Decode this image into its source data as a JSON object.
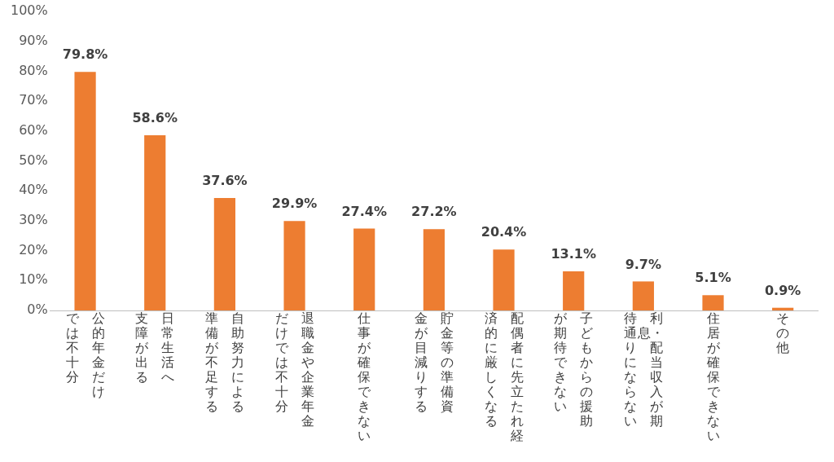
{
  "chart_data": {
    "type": "bar",
    "categories": [
      "公的年金だけでは不十分",
      "日常生活へ支障が出る",
      "自助努力による準備が不足する",
      "退職金や企業年金だけでは不十分",
      "仕事が確保できない",
      "貯金等の準備資金が目減りする",
      "配偶者に先立たれ経済的に厳しくなる",
      "子どもからの援助が期待できない",
      "利息・配当収入が期待通りにならない",
      "住居が確保できない",
      "その他"
    ],
    "values": [
      79.8,
      58.6,
      37.6,
      29.9,
      27.4,
      27.2,
      20.4,
      13.1,
      9.7,
      5.1,
      0.9
    ],
    "value_labels": [
      "79.8%",
      "58.6%",
      "37.6%",
      "29.9%",
      "27.4%",
      "27.2%",
      "20.4%",
      "13.1%",
      "9.7%",
      "5.1%",
      "0.9%"
    ],
    "color": "#ed7d31",
    "ylim": [
      0,
      100
    ],
    "yticks": [
      {
        "value": 0,
        "label": "0%"
      },
      {
        "value": 10,
        "label": "10%"
      },
      {
        "value": 20,
        "label": "20%"
      },
      {
        "value": 30,
        "label": "30%"
      },
      {
        "value": 40,
        "label": "40%"
      },
      {
        "value": 50,
        "label": "50%"
      },
      {
        "value": 60,
        "label": "60%"
      },
      {
        "value": 70,
        "label": "70%"
      },
      {
        "value": 80,
        "label": "80%"
      },
      {
        "value": 90,
        "label": "90%"
      },
      {
        "value": 100,
        "label": "100%"
      }
    ],
    "grid": false,
    "legend": false
  }
}
